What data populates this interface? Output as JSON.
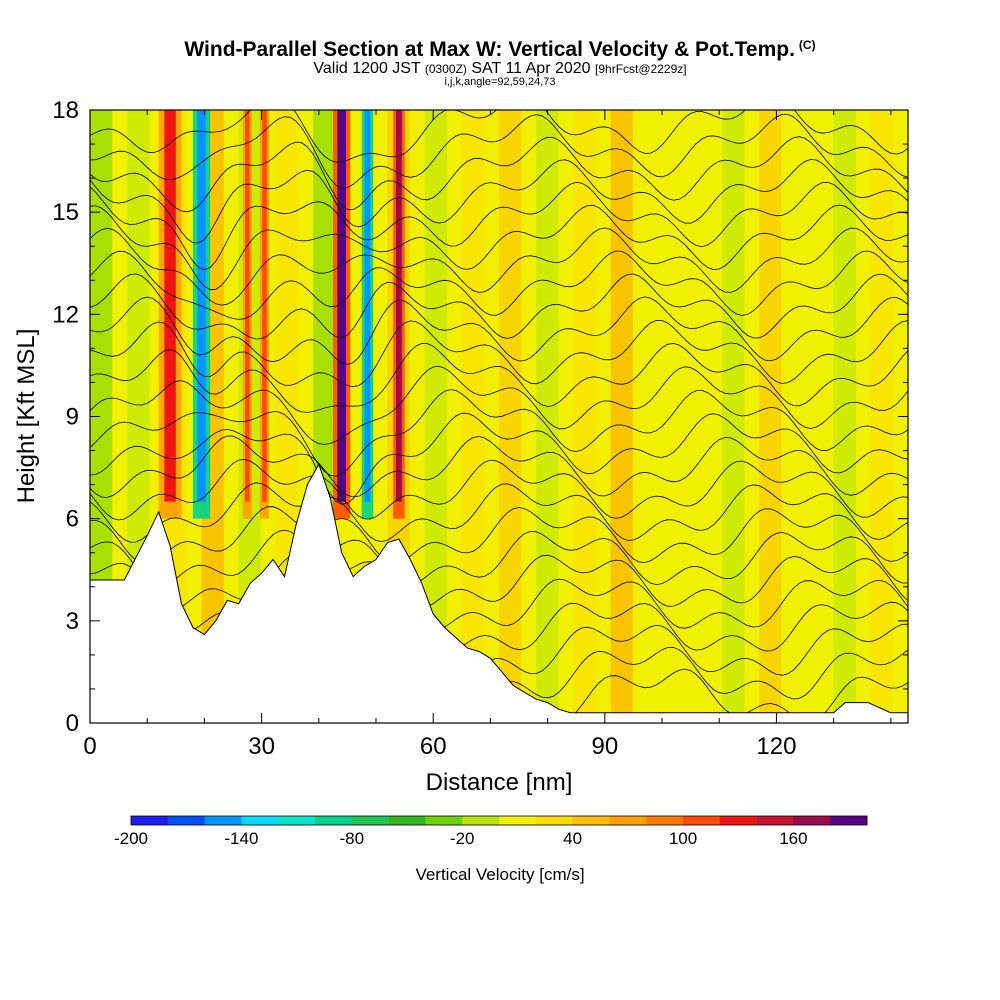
{
  "titles": {
    "main": "Wind-Parallel Section at Max W: Vertical Velocity & Pot.Temp.",
    "main_tag": "(C)",
    "valid_prefix": "Valid 1200 JST",
    "valid_zulu": "(0300Z)",
    "valid_date": "SAT 11 Apr 2020",
    "forecast": "[9hrFcst@2229z]",
    "indices": "i,j,k,angle=92,59,24,73"
  },
  "chart_data": {
    "type": "heatmap",
    "xlabel": "Distance [nm]",
    "ylabel": "Height [Kft MSL]",
    "xlim": [
      0,
      143
    ],
    "ylim": [
      0,
      18
    ],
    "x_ticks": [
      0,
      30,
      60,
      90,
      120
    ],
    "y_ticks": [
      0,
      3,
      6,
      9,
      12,
      15,
      18
    ],
    "colorbar": {
      "label": "Vertical Velocity [cm/s]",
      "min": -200,
      "max": 200,
      "tick_labels": [
        -200,
        -140,
        -80,
        -20,
        40,
        100,
        160
      ],
      "colors": [
        "#1e1ef0",
        "#0050ff",
        "#0096ff",
        "#00dcff",
        "#00e6c8",
        "#00d28c",
        "#1ec850",
        "#32b41e",
        "#6ed20a",
        "#b4e60a",
        "#f0f000",
        "#ffdc00",
        "#ffbe00",
        "#ffa000",
        "#ff7800",
        "#ff4b00",
        "#f01414",
        "#c81432",
        "#9b0a4b",
        "#5a0082"
      ]
    },
    "terrain_kft": {
      "x": [
        0,
        6,
        10,
        12,
        14,
        16,
        18,
        20,
        22,
        24,
        26,
        28,
        30,
        32,
        34,
        36,
        38,
        40,
        42,
        44,
        46,
        48,
        50,
        52,
        54,
        56,
        58,
        60,
        62,
        64,
        66,
        68,
        70,
        72,
        74,
        76,
        78,
        80,
        82,
        84,
        90,
        100,
        110,
        120,
        130,
        132,
        136,
        140,
        143
      ],
      "h": [
        4.2,
        4.2,
        5.5,
        6.2,
        5.2,
        3.5,
        2.8,
        2.6,
        3.0,
        3.6,
        3.5,
        4.1,
        4.4,
        4.8,
        4.3,
        5.8,
        7.0,
        7.6,
        6.6,
        5.0,
        4.3,
        4.6,
        4.8,
        5.3,
        5.4,
        4.8,
        4.1,
        3.2,
        2.8,
        2.5,
        2.2,
        2.1,
        1.9,
        1.5,
        1.1,
        0.9,
        0.7,
        0.6,
        0.4,
        0.3,
        0.3,
        0.3,
        0.3,
        0.3,
        0.3,
        0.6,
        0.6,
        0.3,
        0.3
      ]
    },
    "updraft_cores_nm": [
      {
        "x": 14,
        "w": 4,
        "value": 120
      },
      {
        "x": 19.5,
        "w": 3,
        "value": -160
      },
      {
        "x": 27.5,
        "w": 1.6,
        "value": 110
      },
      {
        "x": 30.5,
        "w": 1.6,
        "value": 100
      },
      {
        "x": 44,
        "w": 3,
        "value": 180
      },
      {
        "x": 48.5,
        "w": 2,
        "value": -150
      },
      {
        "x": 54,
        "w": 2,
        "value": 170
      }
    ],
    "theta_contours_K": [
      287,
      288,
      289,
      290,
      291,
      292,
      293,
      294,
      295,
      296,
      297,
      298,
      299,
      300,
      301,
      302,
      303,
      304,
      305,
      306,
      307,
      308,
      309,
      310,
      311,
      312
    ]
  }
}
